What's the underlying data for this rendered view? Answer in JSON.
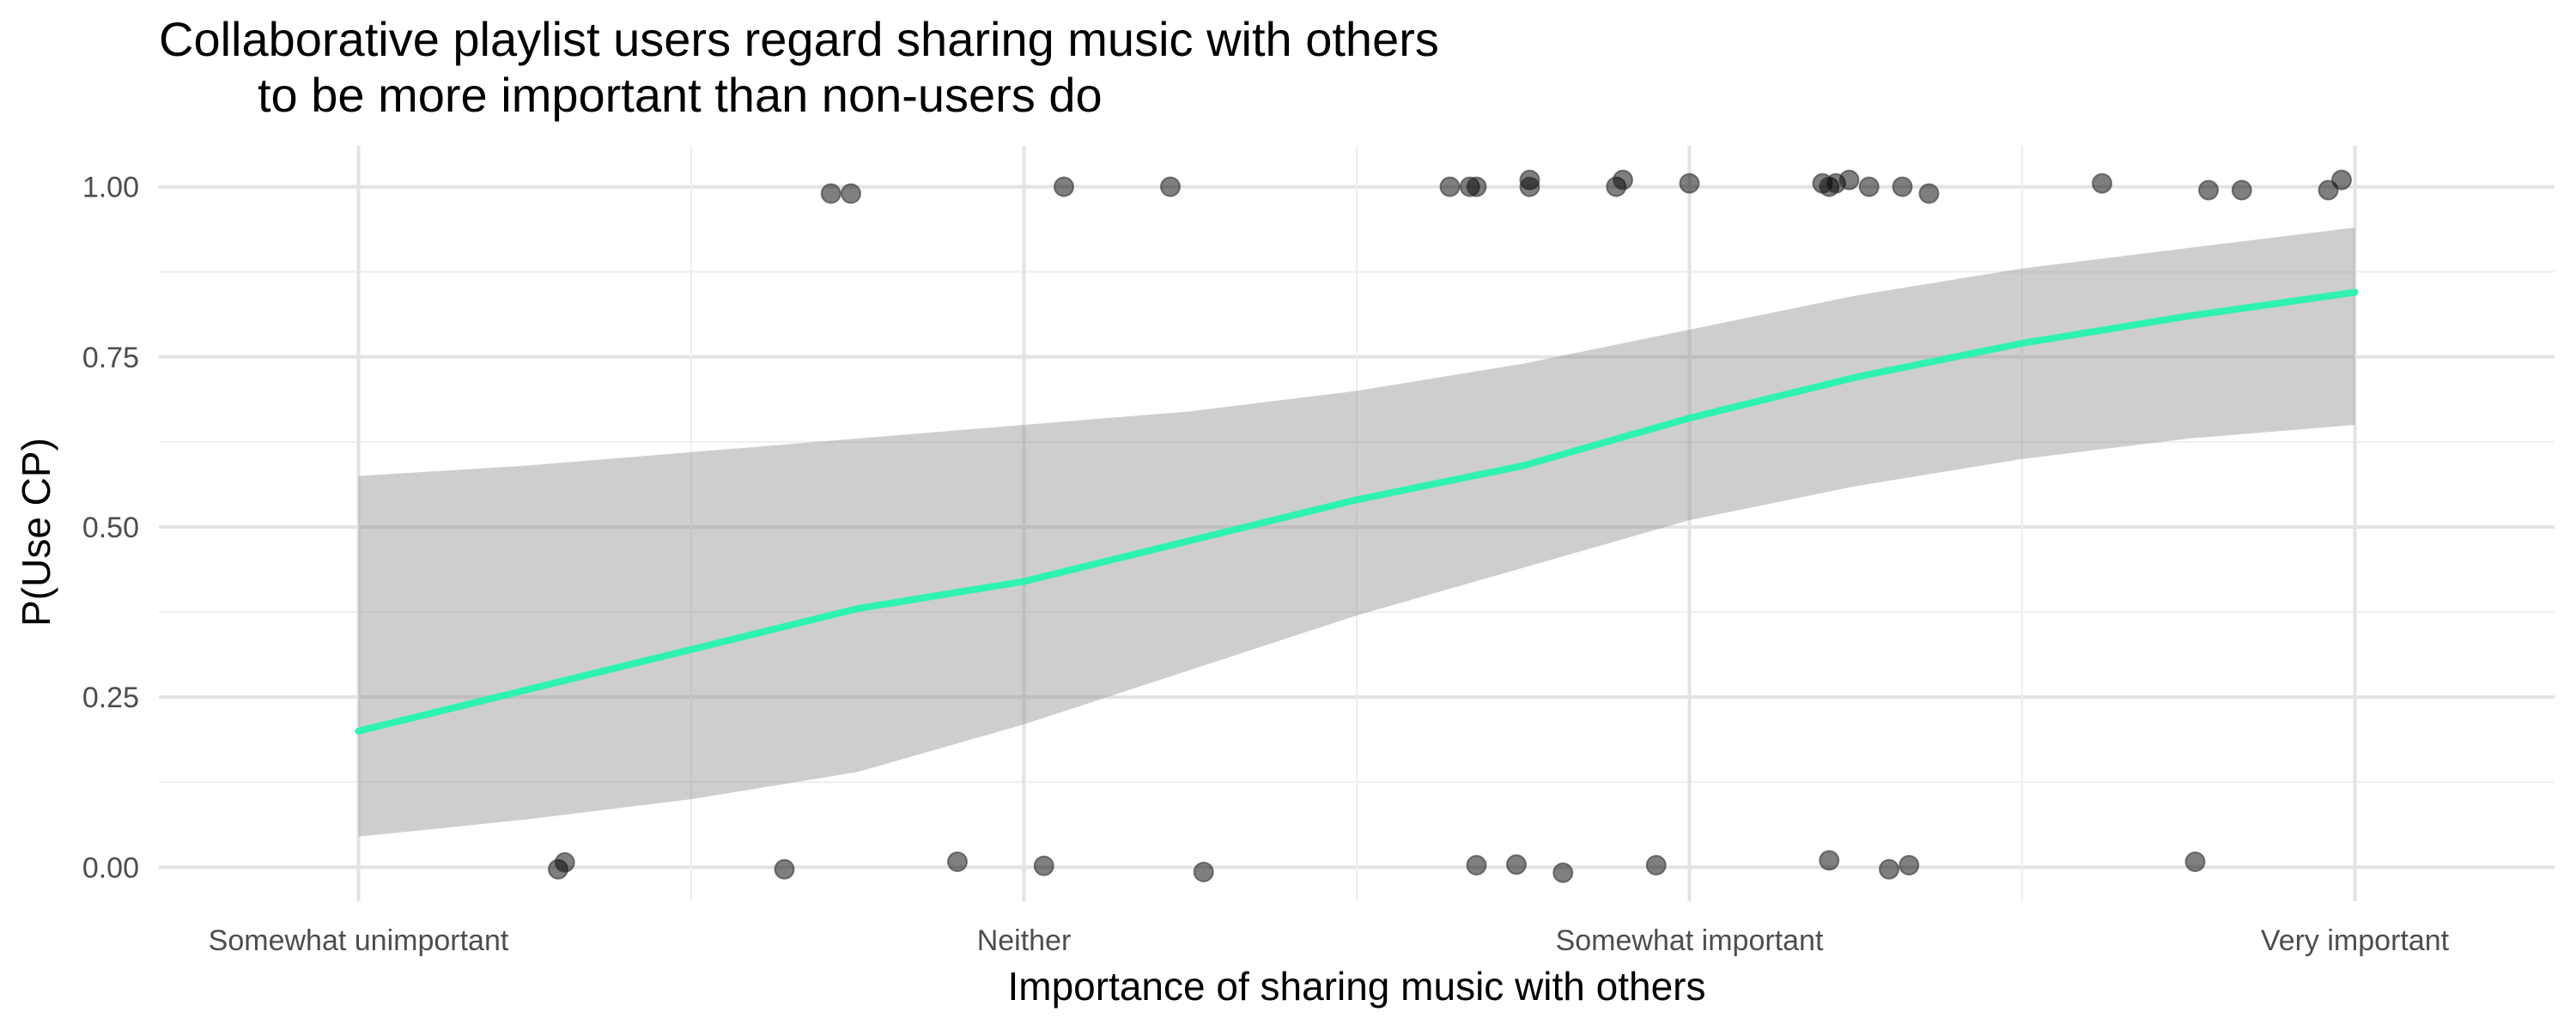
{
  "chart_data": {
    "type": "scatter",
    "title_line1": "Collaborative playlist users regard sharing music with others",
    "title_line2": "to be more important than non-users do",
    "xlabel": "Importance of sharing music with others",
    "ylabel": "P(Use CP)",
    "x_categories": [
      "Somewhat unimportant",
      "Neither",
      "Somewhat important",
      "Very important"
    ],
    "xlim": [
      0.7,
      4.3
    ],
    "ylim": [
      -0.05,
      1.06
    ],
    "y_ticks": [
      "0.00",
      "0.25",
      "0.50",
      "0.75",
      "1.00"
    ],
    "grid": true,
    "points": [
      {
        "x": 2.06,
        "y": 1.0
      },
      {
        "x": 1.71,
        "y": 0.99
      },
      {
        "x": 1.74,
        "y": 0.99
      },
      {
        "x": 2.22,
        "y": 1.0
      },
      {
        "x": 2.64,
        "y": 1.0
      },
      {
        "x": 2.67,
        "y": 1.0
      },
      {
        "x": 2.68,
        "y": 1.0
      },
      {
        "x": 2.76,
        "y": 1.01
      },
      {
        "x": 2.76,
        "y": 1.0
      },
      {
        "x": 2.89,
        "y": 1.0
      },
      {
        "x": 2.9,
        "y": 1.01
      },
      {
        "x": 3.0,
        "y": 1.005
      },
      {
        "x": 3.2,
        "y": 1.005
      },
      {
        "x": 3.21,
        "y": 1.0
      },
      {
        "x": 3.22,
        "y": 1.005
      },
      {
        "x": 3.24,
        "y": 1.01
      },
      {
        "x": 3.27,
        "y": 1.0
      },
      {
        "x": 3.32,
        "y": 1.0
      },
      {
        "x": 3.36,
        "y": 0.99
      },
      {
        "x": 3.62,
        "y": 1.005
      },
      {
        "x": 3.78,
        "y": 0.995
      },
      {
        "x": 3.83,
        "y": 0.995
      },
      {
        "x": 3.96,
        "y": 0.995
      },
      {
        "x": 3.98,
        "y": 1.01
      },
      {
        "x": 1.3,
        "y": -0.003
      },
      {
        "x": 1.31,
        "y": 0.007
      },
      {
        "x": 1.64,
        "y": -0.003
      },
      {
        "x": 1.9,
        "y": 0.008
      },
      {
        "x": 2.03,
        "y": 0.002
      },
      {
        "x": 2.27,
        "y": -0.007
      },
      {
        "x": 2.68,
        "y": 0.003
      },
      {
        "x": 2.74,
        "y": 0.004
      },
      {
        "x": 2.81,
        "y": -0.008
      },
      {
        "x": 2.95,
        "y": 0.003
      },
      {
        "x": 3.21,
        "y": 0.01
      },
      {
        "x": 3.3,
        "y": -0.003
      },
      {
        "x": 3.33,
        "y": 0.003
      },
      {
        "x": 3.76,
        "y": 0.008
      }
    ],
    "fit": {
      "color": "#2ef2b0",
      "x": [
        1.0,
        1.25,
        1.5,
        1.75,
        2.0,
        2.25,
        2.5,
        2.75,
        3.0,
        3.25,
        3.5,
        3.75,
        4.0
      ],
      "y": [
        0.2,
        0.26,
        0.32,
        0.38,
        0.42,
        0.48,
        0.54,
        0.59,
        0.66,
        0.72,
        0.77,
        0.81,
        0.845
      ],
      "lower": [
        0.045,
        0.07,
        0.1,
        0.14,
        0.21,
        0.29,
        0.37,
        0.44,
        0.51,
        0.56,
        0.6,
        0.63,
        0.65
      ],
      "upper": [
        0.575,
        0.59,
        0.61,
        0.63,
        0.65,
        0.67,
        0.7,
        0.74,
        0.79,
        0.84,
        0.88,
        0.91,
        0.94
      ]
    }
  }
}
